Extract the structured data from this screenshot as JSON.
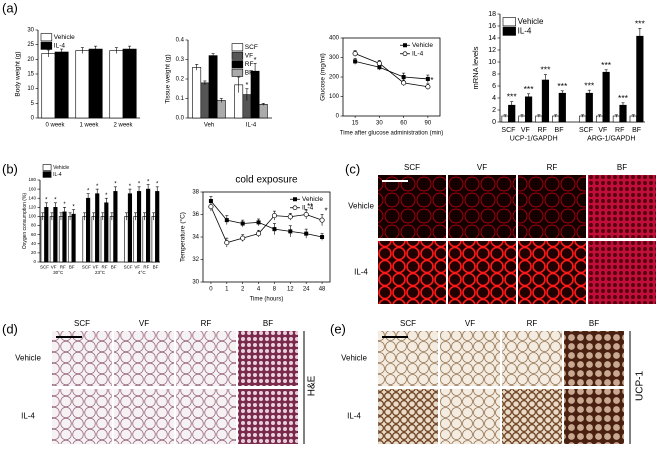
{
  "panel_labels": [
    "(a)",
    "(b)"
  ],
  "chart_data": [
    {
      "type": "bar",
      "ylabel": "Body weight (g)",
      "categories": [
        "0 week",
        "1 week",
        "2 week"
      ],
      "series": [
        {
          "name": "Vehicle",
          "color": "#ffffff",
          "values": [
            22,
            23,
            23
          ],
          "errors": [
            1.2,
            1,
            1
          ]
        },
        {
          "name": "IL-4",
          "color": "#000000",
          "values": [
            22.5,
            23.5,
            23.5
          ],
          "errors": [
            1,
            1,
            1
          ]
        }
      ],
      "ylim": [
        0,
        30
      ],
      "yticks": [
        0,
        5,
        10,
        15,
        20,
        25,
        30
      ],
      "legend": "top-left"
    },
    {
      "type": "bar",
      "ylabel": "Tissue weight (g)",
      "categories": [
        "Veh",
        "IL-4"
      ],
      "series": [
        {
          "name": "SCF",
          "color": "#ffffff",
          "values": [
            0.26,
            0.17
          ],
          "errors": [
            0.015,
            0.04
          ],
          "significance": [
            null,
            "*"
          ]
        },
        {
          "name": "VF",
          "color": "#555555",
          "values": [
            0.18,
            0.12
          ],
          "errors": [
            0.01,
            0.03
          ],
          "significance": [
            null,
            "*"
          ]
        },
        {
          "name": "RF",
          "color": "#000000",
          "values": [
            0.32,
            0.24
          ],
          "errors": [
            0.01,
            0.04
          ],
          "significance": [
            null,
            "*"
          ]
        },
        {
          "name": "BF",
          "color": "#aaaaaa",
          "values": [
            0.09,
            0.07
          ],
          "errors": [
            0.01,
            0.005
          ]
        }
      ],
      "ylim": [
        0,
        0.4
      ],
      "yticks": [
        {
          "value": 0,
          "label": "0.0"
        },
        {
          "value": 0.1,
          "label": "0.1"
        },
        {
          "value": 0.2,
          "label": "0.2"
        },
        {
          "value": 0.3,
          "label": "0.3"
        },
        {
          "value": 0.4,
          "label": "0.4"
        }
      ],
      "legend": "top-right"
    },
    {
      "type": "line",
      "ylabel": "Glucose (mg/ml)",
      "xlabel": "Time after glucose administration (min)",
      "categories": [
        "15",
        "30",
        "60",
        "90"
      ],
      "series": [
        {
          "name": "Vehicle",
          "color": "#000000",
          "marker": "filled-square",
          "values": [
            280,
            250,
            200,
            190
          ],
          "errors": [
            15,
            15,
            20,
            20
          ]
        },
        {
          "name": "IL-4",
          "color": "#000000",
          "marker": "open-circle",
          "values": [
            320,
            270,
            170,
            150
          ],
          "errors": [
            15,
            15,
            15,
            15
          ],
          "significance": [
            null,
            null,
            null,
            "*"
          ]
        }
      ],
      "ylim": [
        0,
        400
      ],
      "yticks": [
        0,
        100,
        200,
        300,
        400
      ],
      "legend": "top-right",
      "frame": "box"
    },
    {
      "type": "bar",
      "ylabel": "mRNA levels",
      "categories": [
        "SCF",
        "VF",
        "RF",
        "BF",
        "SCF",
        "VF",
        "RF",
        "BF"
      ],
      "group_labels": [
        "UCP-1/GAPDH",
        "ARG-1/GAPDH"
      ],
      "series": [
        {
          "name": "Vehicle",
          "color": "#ffffff",
          "values": [
            1,
            1,
            1,
            1,
            1,
            1,
            1,
            1
          ],
          "errors": [
            0.2,
            0.2,
            0.2,
            0.2,
            0.2,
            0.2,
            0.2,
            0.2
          ]
        },
        {
          "name": "IL-4",
          "color": "#000000",
          "values": [
            2.8,
            4.2,
            7,
            4.8,
            4.8,
            8.3,
            2.8,
            14.3
          ],
          "errors": [
            0.6,
            0.5,
            0.9,
            0.4,
            0.5,
            0.4,
            0.4,
            1.3
          ],
          "significance": [
            "***",
            "***",
            "***",
            "***",
            "***",
            "***",
            "***",
            "***"
          ]
        }
      ],
      "ylim": [
        0,
        18
      ],
      "yticks": [
        0,
        2,
        4,
        6,
        8,
        10,
        12,
        14,
        16,
        18
      ],
      "legend": "top-left"
    },
    {
      "type": "bar",
      "ylabel": "Oxygen consumption (%)",
      "categories": [
        "SCF",
        "VF",
        "RF",
        "BF",
        "SCF",
        "VF",
        "RF",
        "BF",
        "SCF",
        "VF",
        "RF",
        "BF"
      ],
      "group_labels": [
        "30°C",
        "23°C",
        "4°C"
      ],
      "series": [
        {
          "name": "Vehicle",
          "color": "#ffffff",
          "values": [
            100,
            100,
            100,
            100,
            100,
            100,
            100,
            100,
            100,
            100,
            100,
            100
          ],
          "errors": [
            8,
            8,
            8,
            8,
            8,
            8,
            8,
            8,
            8,
            8,
            8,
            8
          ]
        },
        {
          "name": "IL-4",
          "color": "#000000",
          "values": [
            120,
            120,
            110,
            105,
            140,
            150,
            130,
            155,
            150,
            155,
            160,
            155
          ],
          "errors": [
            10,
            10,
            10,
            10,
            10,
            10,
            10,
            10,
            10,
            10,
            10,
            10
          ],
          "significance": [
            "*",
            "*",
            "*",
            "*",
            "*",
            "*",
            "*",
            "*",
            "*",
            "*",
            "*",
            "*"
          ]
        }
      ],
      "ylim": [
        0,
        180
      ],
      "yticks": [
        0,
        20,
        40,
        60,
        80,
        100,
        120,
        140,
        160,
        180
      ],
      "legend": "above-left"
    },
    {
      "type": "line",
      "title": "cold exposure",
      "ylabel": "Temperature (°C)",
      "xlabel": "Time (hours)",
      "categories": [
        "0",
        "1",
        "2",
        "4",
        "8",
        "12",
        "24",
        "48"
      ],
      "series": [
        {
          "name": "Vehicle",
          "color": "#000000",
          "marker": "filled-square",
          "values": [
            37.2,
            35.5,
            35.2,
            35.3,
            34.7,
            34.5,
            34.3,
            34
          ],
          "errors": [
            0.4,
            0.4,
            0.3,
            0.3,
            0.5,
            0.5,
            0.4,
            0.3
          ]
        },
        {
          "name": "IL-4",
          "color": "#000000",
          "marker": "open-circle",
          "values": [
            36.7,
            33.5,
            33.9,
            34.3,
            35.9,
            35.8,
            36,
            35.5
          ],
          "errors": [
            0.4,
            0.4,
            0.3,
            0.3,
            0.4,
            0.3,
            0.4,
            0.5
          ],
          "significance": [
            null,
            null,
            null,
            null,
            null,
            "*",
            "**",
            "*"
          ]
        }
      ],
      "ylim": [
        30,
        38
      ],
      "yticks": [
        30,
        32,
        34,
        36,
        38
      ],
      "legend": "top-right",
      "frame": "box"
    }
  ],
  "micrographs": [
    {
      "label": "(c)",
      "columns": [
        "SCF",
        "VF",
        "RF",
        "BF"
      ],
      "rows": [
        "Vehicle",
        "IL-4"
      ]
    },
    {
      "label": "(d)",
      "columns": [
        "SCF",
        "VF",
        "RF",
        "BF"
      ],
      "rows": [
        "Vehicle",
        "IL-4"
      ],
      "side": "H&E"
    },
    {
      "label": "(e)",
      "columns": [
        "SCF",
        "VF",
        "RF",
        "BF"
      ],
      "rows": [
        "Vehicle",
        "IL-4"
      ],
      "side": "UCP-1"
    }
  ]
}
